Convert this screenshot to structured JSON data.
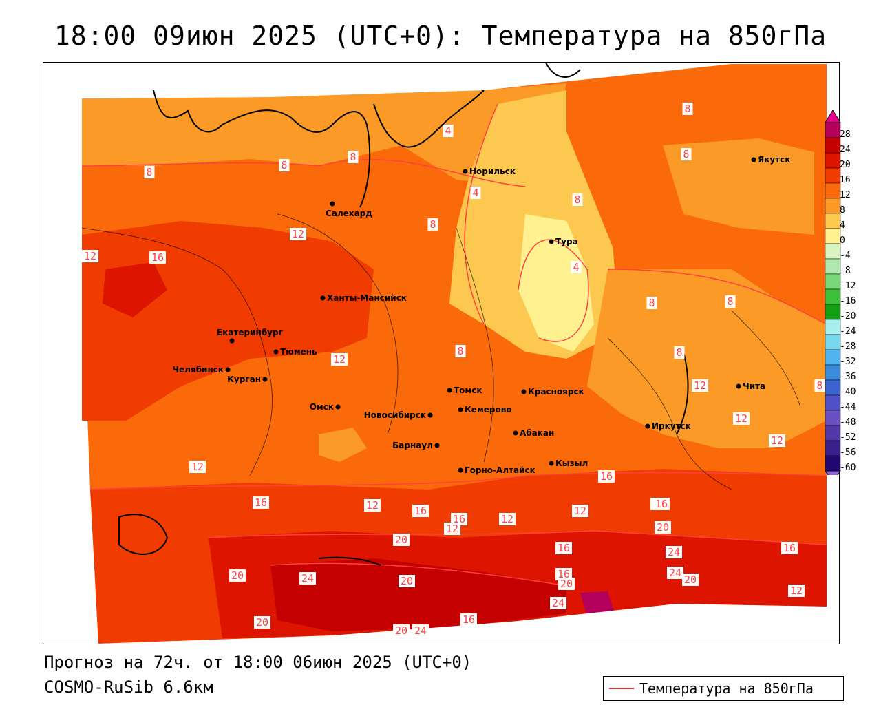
{
  "title": "18:00 09июн 2025 (UTC+0): Температура на 850гПа",
  "footer": {
    "forecast": "Прогноз на 72ч. от 18:00 06июн 2025 (UTC+0)",
    "model": "COSMO-RuSib 6.6км"
  },
  "legend": {
    "label": "Температура на 850гПа",
    "line_color": "#e03030"
  },
  "colorbar": {
    "levels": [
      28,
      24,
      20,
      16,
      12,
      8,
      4,
      0,
      -4,
      -8,
      -12,
      -16,
      -20,
      -24,
      -28,
      -32,
      -36,
      -40,
      -44,
      -48,
      -52,
      -56,
      -60
    ],
    "colors": [
      "#b4005a",
      "#c40000",
      "#dc1400",
      "#f03c00",
      "#fa6a0a",
      "#fc9a28",
      "#fdc850",
      "#fff090",
      "#d8f4c0",
      "#b0eab0",
      "#78d878",
      "#3cc03c",
      "#14a014",
      "#a8f0f0",
      "#78d8f0",
      "#50b4f0",
      "#3c8cdc",
      "#3c64d0",
      "#5050c8",
      "#6a50c0",
      "#5038a8",
      "#38208c",
      "#200870"
    ]
  },
  "cities": [
    {
      "name": "Норильск"
    },
    {
      "name": "Якутск"
    },
    {
      "name": "Салехард"
    },
    {
      "name": "Тура"
    },
    {
      "name": "Ханты-Мансийск"
    },
    {
      "name": "Екатеринбург"
    },
    {
      "name": "Тюмень"
    },
    {
      "name": "Челябинск"
    },
    {
      "name": "Курган"
    },
    {
      "name": "Омск"
    },
    {
      "name": "Новосибирск"
    },
    {
      "name": "Томск"
    },
    {
      "name": "Кемерово"
    },
    {
      "name": "Красноярск"
    },
    {
      "name": "Барнаул"
    },
    {
      "name": "Абакан"
    },
    {
      "name": "Иркутск"
    },
    {
      "name": "Чита"
    },
    {
      "name": "Горно-Алтайск"
    },
    {
      "name": "Кызыл"
    }
  ],
  "isotherm_labels": [
    "8",
    "4",
    "8",
    "8",
    "8",
    "4",
    "8",
    "8",
    "8",
    "12",
    "16",
    "12",
    "12",
    "8",
    "4",
    "8",
    "8",
    "12",
    "12",
    "12",
    "8",
    "8",
    "12",
    "16",
    "12",
    "16",
    "16",
    "12",
    "12",
    "16",
    "20",
    "20",
    "12",
    "20",
    "16",
    "16",
    "20",
    "24",
    "24",
    "16",
    "20",
    "24",
    "20",
    "16",
    "20",
    "24",
    "12",
    "24",
    "16",
    "20",
    "20",
    "24"
  ]
}
